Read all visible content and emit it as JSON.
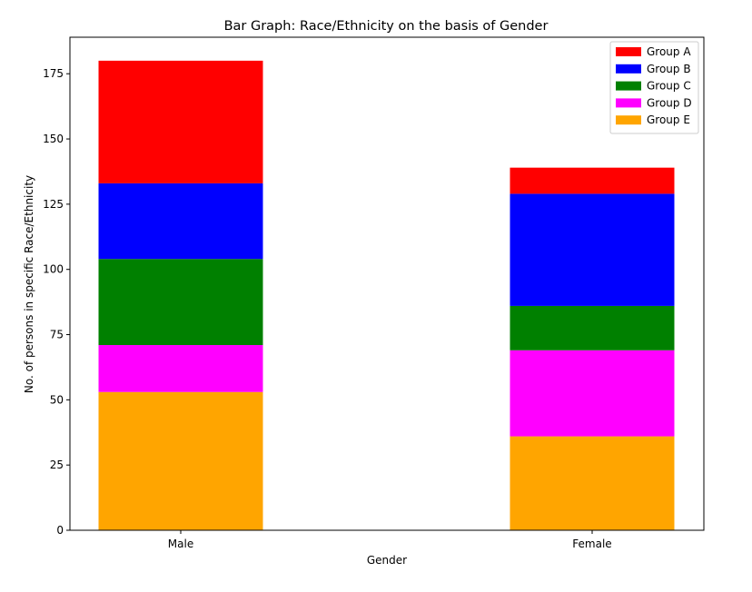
{
  "chart_data": {
    "type": "bar",
    "stacked": true,
    "title": "Bar Graph: Race/Ethnicity on the basis of Gender",
    "xlabel": "Gender",
    "ylabel": "No. of persons in specific Race/Ethnicity",
    "categories": [
      "Male",
      "Female"
    ],
    "ylim": [
      0,
      189
    ],
    "yticks": [
      0,
      25,
      50,
      75,
      100,
      125,
      150,
      175
    ],
    "grid": false,
    "legend_placement": "top-right",
    "series": [
      {
        "name": "Group E",
        "color": "#ffa500",
        "values": [
          53,
          36
        ]
      },
      {
        "name": "Group D",
        "color": "#ff00ff",
        "values": [
          18,
          33
        ]
      },
      {
        "name": "Group C",
        "color": "#008000",
        "values": [
          33,
          17
        ]
      },
      {
        "name": "Group B",
        "color": "#0000ff",
        "values": [
          29,
          43
        ]
      },
      {
        "name": "Group A",
        "color": "#ff0000",
        "values": [
          47,
          10
        ]
      }
    ],
    "legend_order": [
      "Group A",
      "Group B",
      "Group C",
      "Group D",
      "Group E"
    ]
  }
}
